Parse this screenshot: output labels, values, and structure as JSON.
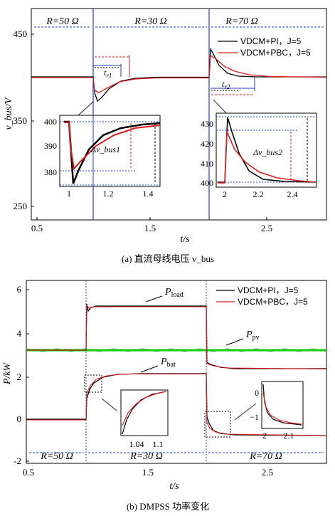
{
  "colors": {
    "pi": "#000000",
    "pbc": "#e31a1c",
    "pv": "#22cc22",
    "switch": "#1f3fbf",
    "blue": "#1f3fbf",
    "red": "#e31a1c"
  },
  "chart_data": [
    {
      "type": "line",
      "caption": "(a)  直流母线电压 v_bus",
      "xlabel": "t/s",
      "ylabel": "v_bus/V",
      "xlim": [
        0.4,
        2.95
      ],
      "ylim": [
        240,
        465
      ],
      "xticks": [
        "0.5",
        "1.5",
        "2.5"
      ],
      "yticks": [
        "250",
        "350",
        "450"
      ],
      "regions": [
        "R=50 Ω",
        "R=30 Ω",
        "R=70 Ω"
      ],
      "legend": [
        "VDCM+PI，J=5",
        "VDCM+PBC，J=5"
      ],
      "switch_times": [
        1.1,
        2.0
      ],
      "series": [
        {
          "name": "VDCM+PI，J=5",
          "points": [
            [
              0.4,
              400
            ],
            [
              1.1,
              400
            ],
            [
              1.12,
              382
            ],
            [
              1.15,
              380
            ],
            [
              1.2,
              387
            ],
            [
              1.3,
              395
            ],
            [
              1.4,
              398.5
            ],
            [
              1.5,
              399.5
            ],
            [
              1.7,
              400
            ],
            [
              2.0,
              400
            ],
            [
              2.02,
              433
            ],
            [
              2.05,
              428
            ],
            [
              2.1,
              418
            ],
            [
              2.2,
              405
            ],
            [
              2.3,
              401
            ],
            [
              2.5,
              400
            ],
            [
              2.95,
              400
            ]
          ]
        },
        {
          "name": "VDCM+PBC，J=5",
          "points": [
            [
              0.4,
              400
            ],
            [
              1.1,
              400
            ],
            [
              1.12,
              386
            ],
            [
              1.17,
              388
            ],
            [
              1.25,
              392
            ],
            [
              1.35,
              395.5
            ],
            [
              1.5,
              398
            ],
            [
              1.7,
              399.5
            ],
            [
              2.0,
              400
            ],
            [
              2.02,
              427
            ],
            [
              2.08,
              421
            ],
            [
              2.15,
              414
            ],
            [
              2.25,
              408
            ],
            [
              2.4,
              403
            ],
            [
              2.6,
              400.5
            ],
            [
              2.95,
              400
            ]
          ]
        }
      ],
      "inset1": {
        "xticks": [
          "1",
          "1.2",
          "1.4"
        ],
        "yticks": [
          "400",
          "390",
          "380"
        ],
        "annotation": "Δv_bus1"
      },
      "inset2": {
        "xticks": [
          "2",
          "2.2",
          "2.4"
        ],
        "yticks": [
          "430",
          "420",
          "410",
          "400"
        ],
        "annotation": "Δv_bus2"
      },
      "annotations": [
        "t_r1",
        "t_r2"
      ]
    },
    {
      "type": "line",
      "caption": "(b) DMPSS 功率变化",
      "xlabel": "t/s",
      "ylabel": "P/kW",
      "xlim": [
        0.4,
        2.95
      ],
      "ylim": [
        -2,
        6.7
      ],
      "xticks": [
        "0.5",
        "1.5",
        "2.5"
      ],
      "yticks": [
        "-2",
        "0",
        "2",
        "4",
        "6"
      ],
      "regions": [
        "R=50 Ω",
        "R=30 Ω",
        "R=70 Ω"
      ],
      "legend": [
        "VDCM+PI，J=5",
        "VDCM+PBC，J=5"
      ],
      "switch_times": [
        1.0,
        2.0
      ],
      "series": [
        {
          "name": "P_load",
          "points": [
            [
              0.4,
              3.2
            ],
            [
              1.0,
              3.2
            ],
            [
              1.01,
              5.4
            ],
            [
              1.03,
              5.2
            ],
            [
              1.06,
              5.3
            ],
            [
              1.1,
              5.35
            ],
            [
              2.0,
              5.35
            ],
            [
              2.01,
              2.6
            ],
            [
              2.05,
              2.5
            ],
            [
              2.15,
              2.35
            ],
            [
              2.3,
              2.3
            ],
            [
              2.95,
              2.3
            ]
          ]
        },
        {
          "name": "P_pv",
          "points": [
            [
              0.4,
              3.2
            ],
            [
              2.95,
              3.2
            ]
          ]
        },
        {
          "name": "P_bat",
          "points": [
            [
              0.4,
              0
            ],
            [
              1.0,
              0
            ],
            [
              1.01,
              1.3
            ],
            [
              1.04,
              1.6
            ],
            [
              1.1,
              1.9
            ],
            [
              1.2,
              2.1
            ],
            [
              1.4,
              2.15
            ],
            [
              2.0,
              2.15
            ],
            [
              2.01,
              0.2
            ],
            [
              2.03,
              -0.4
            ],
            [
              2.08,
              -0.7
            ],
            [
              2.15,
              -0.85
            ],
            [
              2.4,
              -0.9
            ],
            [
              2.95,
              -0.9
            ]
          ]
        }
      ],
      "inset1": {
        "xticks": [
          "1.04",
          "1.1"
        ]
      },
      "inset2": {
        "xticks": [
          "2",
          "2.1"
        ],
        "yticks": [
          "0",
          "−1"
        ]
      },
      "labels": [
        "P_load",
        "P_pv",
        "P_bat"
      ]
    }
  ]
}
